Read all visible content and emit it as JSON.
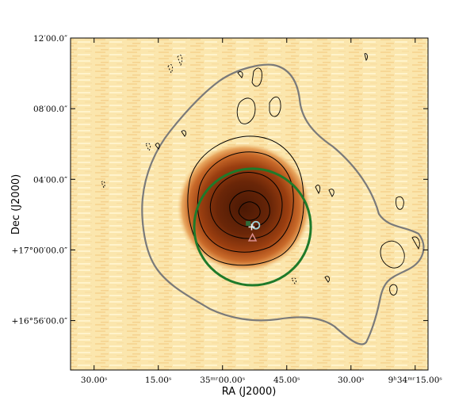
{
  "chart_data": {
    "type": "heatmap",
    "title": "",
    "xlabel": "RA (J2000)",
    "ylabel": "Dec (J2000)",
    "x_tick_labels": [
      "30.00ˢ",
      "15.00ˢ",
      "35ᵐʳ00.00ˢ",
      "45.00ˢ",
      "30.00ˢ",
      "9ʰ34ᵐʳ15.00ˢ"
    ],
    "y_tick_labels": [
      "12′00.0″",
      "08′00.0″",
      "04′00.0″",
      "+17°00′00.0″",
      "+16°56′00.0″"
    ],
    "x_ticks_sec": [
      90,
      75,
      60,
      45,
      30,
      15
    ],
    "y_ticks_arcmin": [
      12,
      8,
      4,
      0,
      -4
    ],
    "xlim_sec": [
      95.5,
      12.0
    ],
    "ylim_arcmin": [
      12.0,
      -6.8
    ],
    "grid": false,
    "colormap": [
      "#fff3c8",
      "#fbe3a3",
      "#f3bf73",
      "#d97a2e",
      "#a84512",
      "#5a1e06"
    ],
    "cluster_circle": {
      "center_sec": [
        53.0,
        1.3
      ],
      "radius_arcmin": 3.3,
      "color": "#1f7a2a"
    },
    "markers": [
      {
        "name": "circle",
        "at_sec": [
          52.2,
          1.4
        ],
        "color": "#9fd0d6"
      },
      {
        "name": "plus",
        "at_sec": [
          53.2,
          1.3
        ],
        "color": "#f2f2f2"
      },
      {
        "name": "square",
        "at_sec": [
          54.0,
          1.5
        ],
        "color": "#2f6b3a"
      },
      {
        "name": "triangle",
        "at_sec": [
          53.0,
          0.7
        ],
        "color": "#d98d8d"
      }
    ],
    "outer_contour_color": "#7a7a7a",
    "contour_color": "#000000"
  }
}
